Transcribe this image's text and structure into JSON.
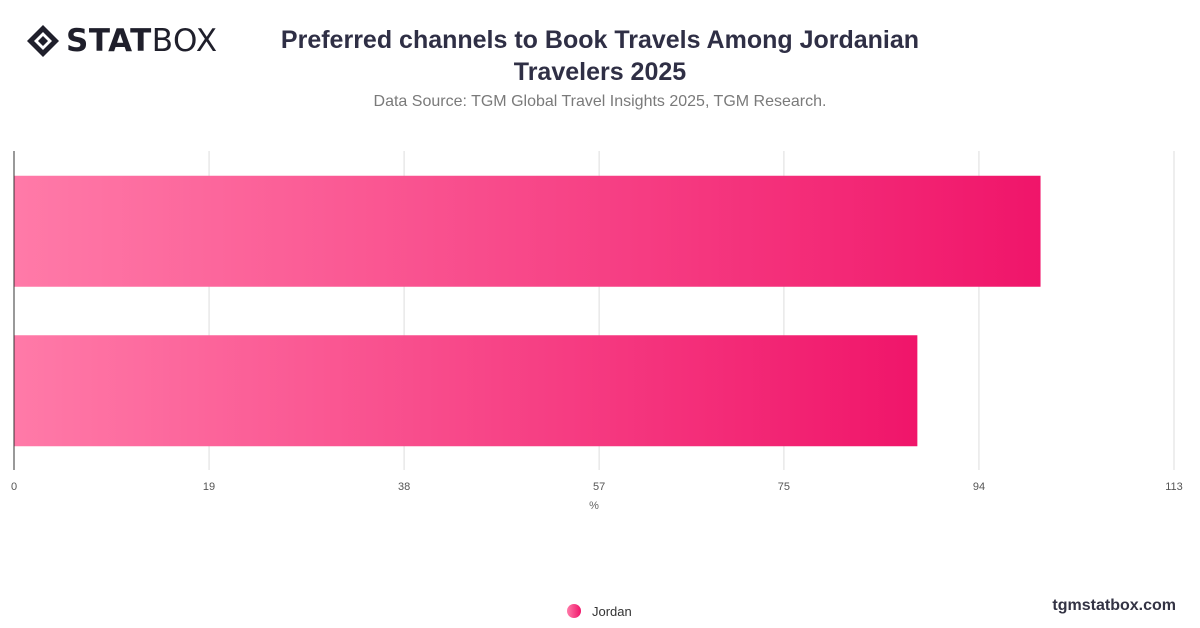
{
  "brand": {
    "logo_strong": "STAT",
    "logo_light": "BOX",
    "site": "tgmstatbox.com"
  },
  "header": {
    "title": "Preferred channels to Book Travels Among Jordanian Travelers 2025",
    "subtitle": "Data Source: TGM Global Travel Insights 2025, TGM Research."
  },
  "chart_data": {
    "type": "bar",
    "orientation": "horizontal",
    "categories": [
      "",
      ""
    ],
    "series": [
      {
        "name": "Jordan",
        "values": [
          100,
          88
        ]
      }
    ],
    "xlabel": "%",
    "ylabel": "",
    "xlim": [
      0,
      113
    ],
    "xticks": [
      0,
      19,
      38,
      57,
      75,
      94,
      113
    ],
    "grid": true,
    "legend": "bottom-center",
    "colors": {
      "bar_start": "#ff7aa8",
      "bar_end": "#f0156a",
      "grid": "#dddddd",
      "axis": "#333333"
    }
  }
}
